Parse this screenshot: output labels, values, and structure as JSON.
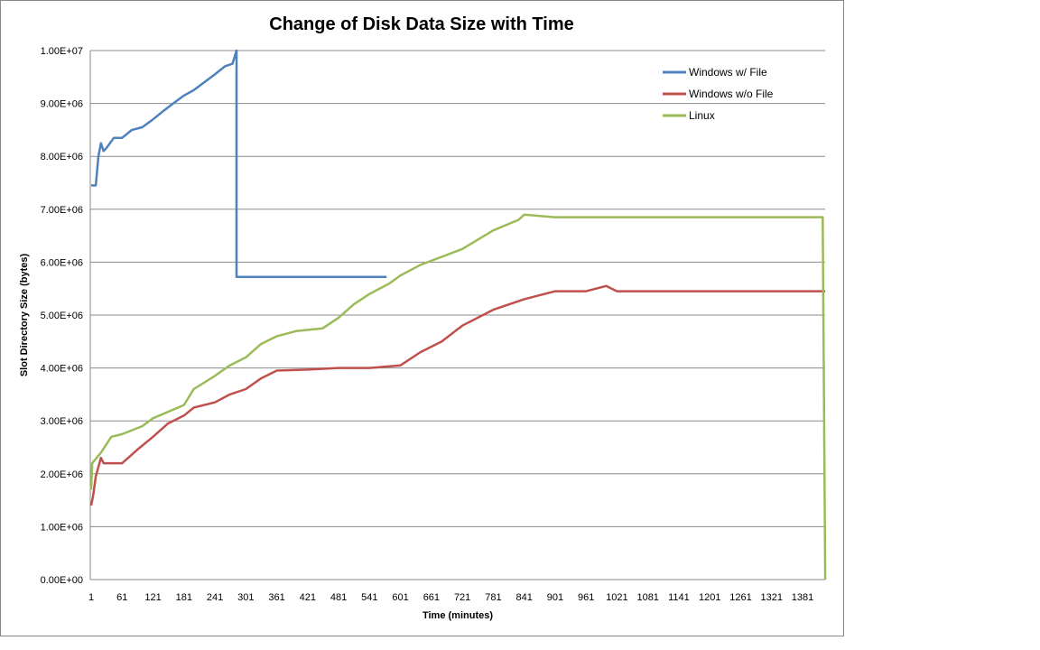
{
  "chart_data": {
    "type": "line",
    "title": "Change of Disk Data Size with Time",
    "xlabel": "Time (minutes)",
    "ylabel": "Slot Directory Size (bytes)",
    "xlim": [
      1,
      1425
    ],
    "ylim": [
      0,
      10000000
    ],
    "x_tick_labels": [
      "1",
      "61",
      "121",
      "181",
      "241",
      "301",
      "361",
      "421",
      "481",
      "541",
      "601",
      "661",
      "721",
      "781",
      "841",
      "901",
      "961",
      "1021",
      "1081",
      "1141",
      "1201",
      "1261",
      "1321",
      "1381"
    ],
    "y_tick_labels": [
      "0.00E+00",
      "1.00E+06",
      "2.00E+06",
      "3.00E+06",
      "4.00E+06",
      "5.00E+06",
      "6.00E+06",
      "7.00E+06",
      "8.00E+06",
      "9.00E+06",
      "1.00E+07"
    ],
    "grid": "horizontal",
    "legend_position": "top-right",
    "series": [
      {
        "name": "Windows w/ File",
        "color": "#4F81BD",
        "x": [
          1,
          10,
          15,
          20,
          25,
          30,
          45,
          61,
          80,
          100,
          121,
          140,
          160,
          181,
          200,
          220,
          241,
          260,
          275,
          283,
          283,
          300,
          574
        ],
        "y": [
          7450000,
          7450000,
          8000000,
          8250000,
          8100000,
          8150000,
          8350000,
          8350000,
          8500000,
          8550000,
          8700000,
          8850000,
          9000000,
          9150000,
          9250000,
          9400000,
          9550000,
          9700000,
          9750000,
          10000000,
          5720000,
          5720000,
          5720000
        ]
      },
      {
        "name": "Windows w/o File",
        "color": "#C0504D",
        "x": [
          1,
          5,
          10,
          20,
          25,
          61,
          90,
          121,
          150,
          181,
          200,
          241,
          270,
          301,
          330,
          361,
          421,
          481,
          541,
          601,
          640,
          681,
          721,
          781,
          841,
          901,
          961,
          1000,
          1021,
          1425
        ],
        "y": [
          1400000,
          1600000,
          1950000,
          2300000,
          2200000,
          2200000,
          2450000,
          2700000,
          2950000,
          3100000,
          3250000,
          3350000,
          3500000,
          3600000,
          3800000,
          3950000,
          3970000,
          4000000,
          4000000,
          4050000,
          4300000,
          4500000,
          4800000,
          5100000,
          5300000,
          5450000,
          5450000,
          5550000,
          5450000,
          5450000
        ]
      },
      {
        "name": "Linux",
        "color": "#9BBB59",
        "x": [
          1,
          3,
          20,
          40,
          61,
          100,
          121,
          181,
          200,
          241,
          270,
          301,
          330,
          361,
          400,
          450,
          481,
          510,
          541,
          580,
          601,
          640,
          681,
          721,
          781,
          830,
          841,
          900,
          960,
          1020,
          1100,
          1200,
          1300,
          1380,
          1420,
          1425
        ],
        "y": [
          1700000,
          2200000,
          2400000,
          2700000,
          2750000,
          2900000,
          3050000,
          3300000,
          3600000,
          3850000,
          4050000,
          4200000,
          4450000,
          4600000,
          4700000,
          4750000,
          4950000,
          5200000,
          5400000,
          5600000,
          5750000,
          5950000,
          6100000,
          6250000,
          6600000,
          6800000,
          6900000,
          6850000,
          6850000,
          6850000,
          6850000,
          6850000,
          6850000,
          6850000,
          6850000,
          0
        ]
      }
    ]
  }
}
